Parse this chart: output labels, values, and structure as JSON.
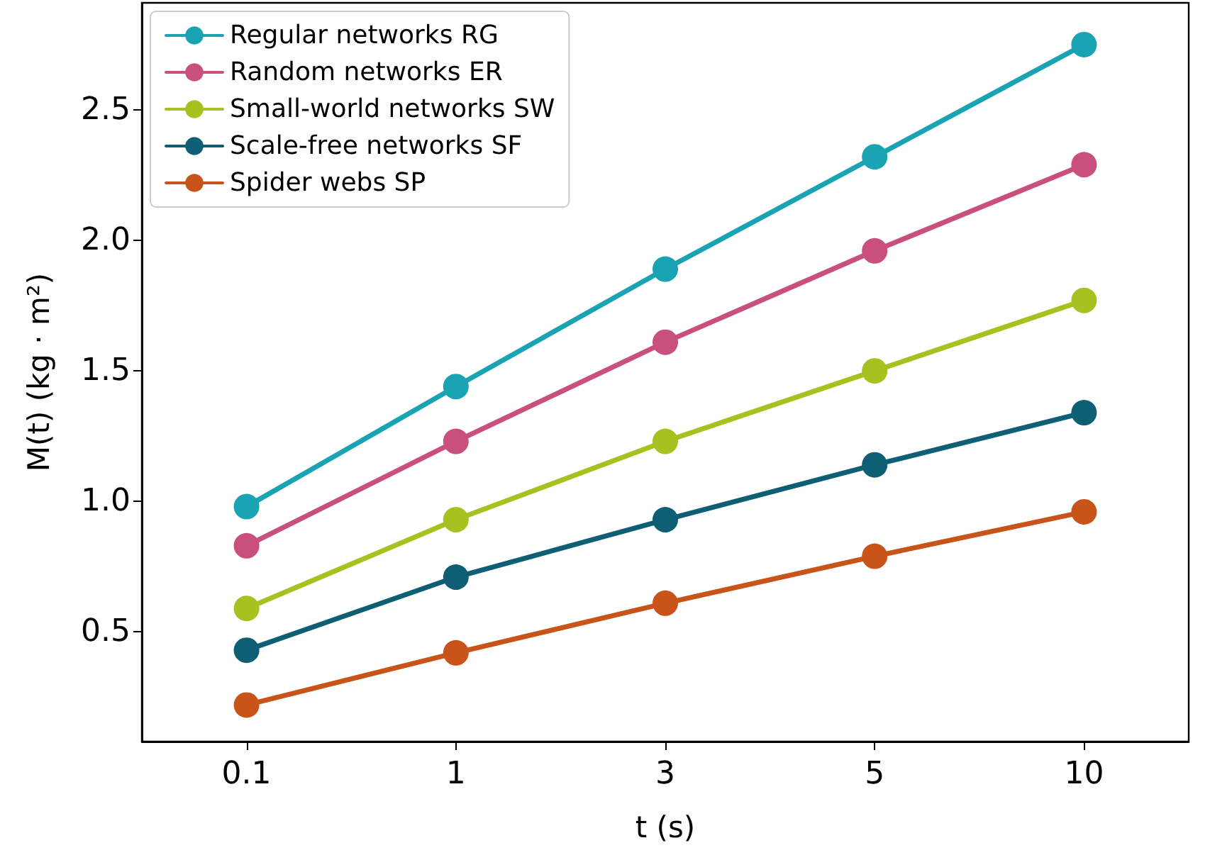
{
  "chart_data": {
    "type": "line",
    "xlabel": "t (s)",
    "ylabel": "M(t) (kg · m²)",
    "categories": [
      "0.1",
      "1",
      "3",
      "5",
      "10"
    ],
    "ylim": [
      0.08,
      2.91
    ],
    "yticks": [
      0.5,
      {
        "value": 1,
        "label": "1.0"
      },
      1.5,
      {
        "value": 2,
        "label": "2.0"
      },
      2.5
    ],
    "grid": false,
    "legend": "top left",
    "marker": "circle",
    "line_style": "solid",
    "series": [
      {
        "name": "Regular networks RG",
        "color": "#1aa3b3",
        "values": [
          0.98,
          1.44,
          1.89,
          2.32,
          2.75
        ]
      },
      {
        "name": "Random networks ER",
        "color": "#c94f7c",
        "values": [
          0.83,
          1.23,
          1.61,
          1.96,
          2.29
        ]
      },
      {
        "name": "Small-world networks SW",
        "color": "#a5c21f",
        "values": [
          0.59,
          0.93,
          1.23,
          1.5,
          1.77
        ]
      },
      {
        "name": "Scale-free networks SF",
        "color": "#0e5f73",
        "values": [
          0.43,
          0.71,
          0.93,
          1.14,
          1.34
        ]
      },
      {
        "name": "Spider webs SP",
        "color": "#c9541a",
        "values": [
          0.22,
          0.42,
          0.61,
          0.79,
          0.96
        ]
      }
    ]
  }
}
